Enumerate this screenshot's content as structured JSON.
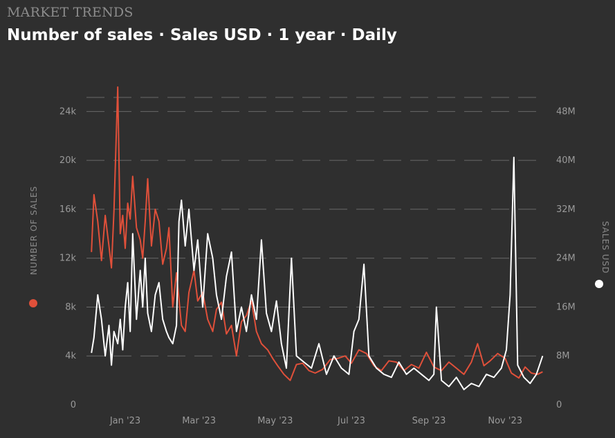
{
  "header": {
    "kicker": "MARKET TRENDS",
    "title": "Number of sales · Sales USD · 1 year · Daily"
  },
  "colors": {
    "background": "#2f2f2f",
    "grid": "#6a6a6a",
    "sales_count": "#e0503a",
    "sales_usd": "#ffffff"
  },
  "chart_data": {
    "type": "line",
    "grid": true,
    "x_ticks": [
      "Jan '23",
      "Mar '23",
      "May '23",
      "Jul '23",
      "Sep '23",
      "Nov '23"
    ],
    "y_left": {
      "label": "NUMBER OF SALES",
      "ticks": [
        "0",
        "4k",
        "8k",
        "12k",
        "16k",
        "20k",
        "24k"
      ],
      "range": [
        0,
        26000
      ]
    },
    "y_right": {
      "label": "SALES USD",
      "ticks": [
        "0",
        "8M",
        "16M",
        "24M",
        "32M",
        "40M",
        "48M"
      ],
      "range": [
        0,
        52000000
      ]
    },
    "series": [
      {
        "name": "NUMBER OF SALES",
        "axis": "left",
        "x": [
          "2022-12-05",
          "2022-12-07",
          "2022-12-10",
          "2022-12-13",
          "2022-12-16",
          "2022-12-19",
          "2022-12-21",
          "2022-12-23",
          "2022-12-26",
          "2022-12-28",
          "2022-12-30",
          "2023-01-01",
          "2023-01-03",
          "2023-01-05",
          "2023-01-07",
          "2023-01-10",
          "2023-01-13",
          "2023-01-15",
          "2023-01-17",
          "2023-01-19",
          "2023-01-22",
          "2023-01-25",
          "2023-01-28",
          "2023-01-31",
          "2023-02-03",
          "2023-02-05",
          "2023-02-08",
          "2023-02-11",
          "2023-02-15",
          "2023-02-18",
          "2023-02-21",
          "2023-02-25",
          "2023-02-28",
          "2023-03-04",
          "2023-03-08",
          "2023-03-12",
          "2023-03-15",
          "2023-03-19",
          "2023-03-23",
          "2023-03-27",
          "2023-03-31",
          "2023-04-04",
          "2023-04-08",
          "2023-04-12",
          "2023-04-16",
          "2023-04-20",
          "2023-04-25",
          "2023-04-29",
          "2023-05-03",
          "2023-05-08",
          "2023-05-13",
          "2023-05-18",
          "2023-05-23",
          "2023-05-28",
          "2023-06-02",
          "2023-06-08",
          "2023-06-14",
          "2023-06-20",
          "2023-06-26",
          "2023-07-01",
          "2023-07-07",
          "2023-07-13",
          "2023-07-19",
          "2023-07-25",
          "2023-07-31",
          "2023-08-06",
          "2023-08-12",
          "2023-08-18",
          "2023-08-24",
          "2023-08-30",
          "2023-09-05",
          "2023-09-11",
          "2023-09-17",
          "2023-09-23",
          "2023-09-29",
          "2023-10-05",
          "2023-10-10",
          "2023-10-15",
          "2023-10-20",
          "2023-10-26",
          "2023-11-01",
          "2023-11-06",
          "2023-11-12",
          "2023-11-17",
          "2023-11-22",
          "2023-11-27",
          "2023-12-01"
        ],
        "values": [
          12500,
          17200,
          15000,
          11800,
          15500,
          13000,
          11200,
          15800,
          26000,
          14000,
          15500,
          12800,
          16500,
          15200,
          18700,
          14500,
          13500,
          12000,
          15000,
          18500,
          13000,
          16000,
          15000,
          11500,
          12800,
          14500,
          8000,
          10800,
          6500,
          6000,
          9200,
          11000,
          8500,
          9200,
          7000,
          6000,
          7800,
          8400,
          5800,
          6500,
          4000,
          6800,
          7300,
          8500,
          6000,
          5000,
          4500,
          3800,
          3200,
          2500,
          2000,
          3300,
          3400,
          2800,
          2600,
          2900,
          3700,
          3800,
          4000,
          3400,
          4500,
          4200,
          3200,
          2800,
          3600,
          3500,
          2800,
          3300,
          3000,
          4300,
          3100,
          2800,
          3500,
          3000,
          2500,
          3500,
          5000,
          3200,
          3600,
          4200,
          3800,
          2600,
          2200,
          3100,
          2600,
          2500,
          2700
        ]
      },
      {
        "name": "SALES USD",
        "axis": "right",
        "x": [
          "2022-12-05",
          "2022-12-07",
          "2022-12-10",
          "2022-12-13",
          "2022-12-16",
          "2022-12-19",
          "2022-12-21",
          "2022-12-23",
          "2022-12-26",
          "2022-12-28",
          "2022-12-30",
          "2023-01-01",
          "2023-01-03",
          "2023-01-05",
          "2023-01-07",
          "2023-01-10",
          "2023-01-13",
          "2023-01-15",
          "2023-01-17",
          "2023-01-19",
          "2023-01-22",
          "2023-01-25",
          "2023-01-28",
          "2023-01-31",
          "2023-02-03",
          "2023-02-05",
          "2023-02-08",
          "2023-02-11",
          "2023-02-13",
          "2023-02-15",
          "2023-02-18",
          "2023-02-21",
          "2023-02-25",
          "2023-02-28",
          "2023-03-04",
          "2023-03-08",
          "2023-03-12",
          "2023-03-15",
          "2023-03-19",
          "2023-03-23",
          "2023-03-27",
          "2023-03-31",
          "2023-04-04",
          "2023-04-08",
          "2023-04-12",
          "2023-04-16",
          "2023-04-20",
          "2023-04-24",
          "2023-04-28",
          "2023-05-02",
          "2023-05-06",
          "2023-05-10",
          "2023-05-14",
          "2023-05-18",
          "2023-05-24",
          "2023-05-30",
          "2023-06-05",
          "2023-06-11",
          "2023-06-17",
          "2023-06-23",
          "2023-06-29",
          "2023-07-03",
          "2023-07-07",
          "2023-07-11",
          "2023-07-15",
          "2023-07-21",
          "2023-07-27",
          "2023-08-02",
          "2023-08-08",
          "2023-08-14",
          "2023-08-20",
          "2023-08-26",
          "2023-09-01",
          "2023-09-05",
          "2023-09-07",
          "2023-09-11",
          "2023-09-17",
          "2023-09-23",
          "2023-09-29",
          "2023-10-05",
          "2023-10-11",
          "2023-10-17",
          "2023-10-23",
          "2023-10-29",
          "2023-11-02",
          "2023-11-05",
          "2023-11-08",
          "2023-11-11",
          "2023-11-16",
          "2023-11-21",
          "2023-11-26",
          "2023-12-01"
        ],
        "values": [
          8500,
          11000,
          18000,
          14000,
          8000,
          13000,
          6500,
          12000,
          10000,
          14000,
          9000,
          16000,
          20000,
          12000,
          28000,
          14000,
          22000,
          16000,
          24000,
          15000,
          12000,
          18000,
          20000,
          14000,
          12000,
          11000,
          10000,
          13000,
          30000,
          33500,
          26000,
          32000,
          22000,
          27000,
          16000,
          28000,
          24000,
          18000,
          14000,
          21000,
          25000,
          12000,
          16000,
          12000,
          18000,
          14000,
          27000,
          15000,
          12000,
          17000,
          10000,
          6000,
          24000,
          8000,
          7000,
          6000,
          10000,
          5000,
          8000,
          6000,
          5000,
          12000,
          14000,
          23000,
          8000,
          6000,
          5000,
          4500,
          7000,
          5000,
          6000,
          5000,
          4000,
          5000,
          16000,
          4000,
          3000,
          4500,
          2500,
          3500,
          3000,
          5000,
          4500,
          6000,
          9000,
          18000,
          40500,
          6500,
          4500,
          3500,
          5000,
          8000
        ]
      }
    ]
  }
}
